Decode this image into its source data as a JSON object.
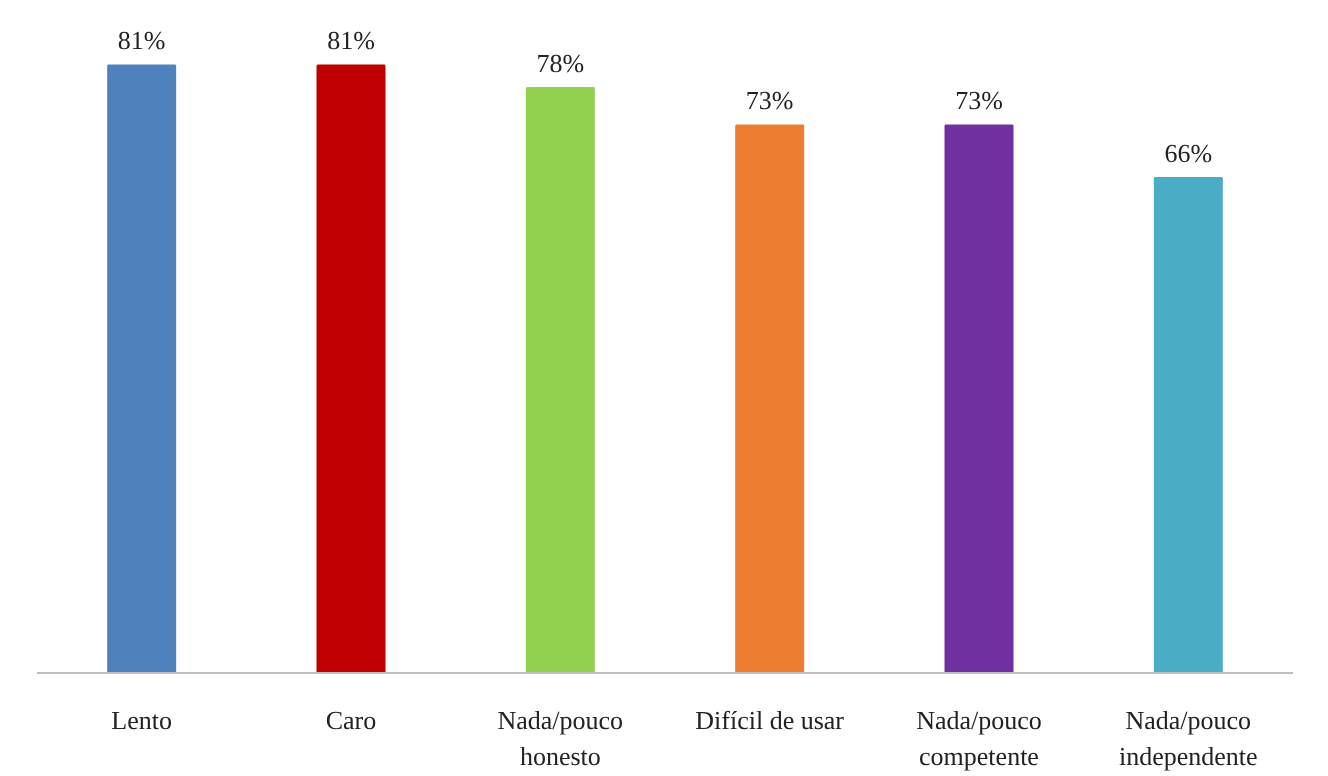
{
  "chart_data": {
    "type": "bar",
    "categories": [
      "Lento",
      "Caro",
      "Nada/pouco\nhonesto",
      "Difícil de usar",
      "Nada/pouco\ncompetente",
      "Nada/pouco\nindependente"
    ],
    "values": [
      81,
      81,
      78,
      73,
      73,
      66
    ],
    "colors": [
      "#4f81bd",
      "#c00000",
      "#92d050",
      "#ed7d31",
      "#7030a0",
      "#4bacc6"
    ],
    "value_labels": [
      "81%",
      "81%",
      "78%",
      "73%",
      "73%",
      "66%"
    ]
  }
}
